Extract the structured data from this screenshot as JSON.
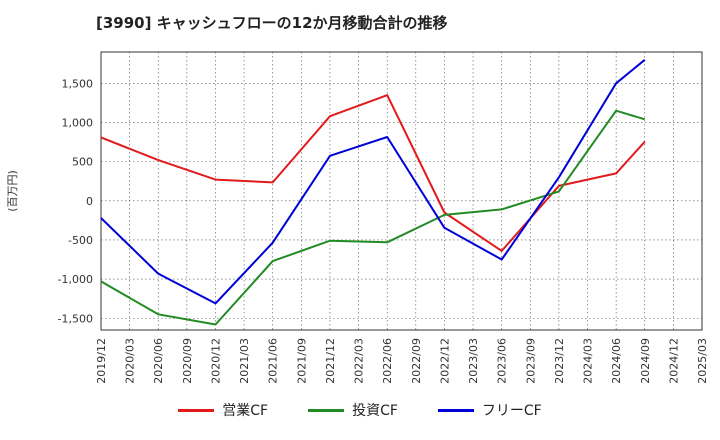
{
  "chart_data": {
    "type": "line",
    "title": "[3990]  キャッシュフローの12か月移動合計の推移",
    "ylabel": "(百万円)",
    "xlabel": "",
    "ylim": [
      -1650,
      1900
    ],
    "yticks": [
      -1500,
      -1000,
      -500,
      0,
      500,
      1000,
      1500
    ],
    "ytick_labels": [
      "-1,500",
      "-1,000",
      "-500",
      "0",
      "500",
      "1,000",
      "1,500"
    ],
    "x_tick_labels": [
      "2019/12",
      "2020/03",
      "2020/06",
      "2020/09",
      "2020/12",
      "2021/03",
      "2021/06",
      "2021/09",
      "2021/12",
      "2022/03",
      "2022/06",
      "2022/09",
      "2022/12",
      "2023/03",
      "2023/06",
      "2023/09",
      "2023/12",
      "2024/03",
      "2024/06",
      "2024/09",
      "2024/12",
      "2025/03"
    ],
    "grid": true,
    "legend_position": "bottom",
    "series": [
      {
        "name": "営業CF",
        "color": "#e31a1c",
        "points": [
          {
            "x": "2019/12",
            "y": 810
          },
          {
            "x": "2020/06",
            "y": 520
          },
          {
            "x": "2020/12",
            "y": 270
          },
          {
            "x": "2021/06",
            "y": 235
          },
          {
            "x": "2021/12",
            "y": 1080
          },
          {
            "x": "2022/06",
            "y": 1350
          },
          {
            "x": "2022/12",
            "y": -150
          },
          {
            "x": "2023/06",
            "y": -640
          },
          {
            "x": "2023/12",
            "y": 190
          },
          {
            "x": "2024/06",
            "y": 350
          },
          {
            "x": "2024/09",
            "y": 755
          }
        ]
      },
      {
        "name": "投資CF",
        "color": "#238b23",
        "points": [
          {
            "x": "2019/12",
            "y": -1030
          },
          {
            "x": "2020/06",
            "y": -1450
          },
          {
            "x": "2020/12",
            "y": -1580
          },
          {
            "x": "2021/06",
            "y": -770
          },
          {
            "x": "2021/12",
            "y": -510
          },
          {
            "x": "2022/06",
            "y": -530
          },
          {
            "x": "2022/12",
            "y": -180
          },
          {
            "x": "2023/06",
            "y": -110
          },
          {
            "x": "2023/12",
            "y": 120
          },
          {
            "x": "2024/06",
            "y": 1150
          },
          {
            "x": "2024/09",
            "y": 1040
          }
        ]
      },
      {
        "name": "フリーCF",
        "color": "#0000d8",
        "points": [
          {
            "x": "2019/12",
            "y": -220
          },
          {
            "x": "2020/06",
            "y": -930
          },
          {
            "x": "2020/12",
            "y": -1310
          },
          {
            "x": "2021/06",
            "y": -535
          },
          {
            "x": "2021/12",
            "y": 575
          },
          {
            "x": "2022/06",
            "y": 815
          },
          {
            "x": "2022/12",
            "y": -345
          },
          {
            "x": "2023/06",
            "y": -750
          },
          {
            "x": "2023/12",
            "y": 300
          },
          {
            "x": "2024/06",
            "y": 1500
          },
          {
            "x": "2024/09",
            "y": 1800
          }
        ]
      }
    ]
  }
}
